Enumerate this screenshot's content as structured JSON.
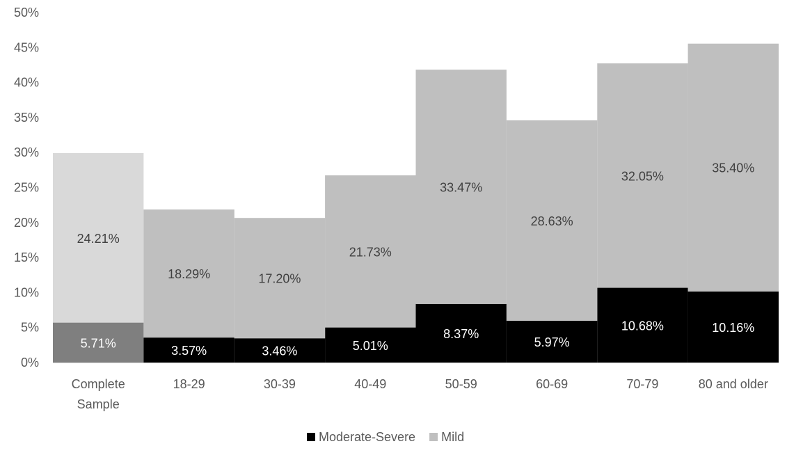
{
  "chart_data": {
    "type": "bar",
    "stacked": true,
    "bar_gap": 0,
    "categories": [
      "Complete\nSample",
      "18-29",
      "30-39",
      "40-49",
      "50-59",
      "60-69",
      "70-79",
      "80 and older"
    ],
    "series": [
      {
        "name": "Moderate-Severe",
        "values": [
          5.71,
          3.57,
          3.46,
          5.01,
          8.37,
          5.97,
          10.68,
          10.16
        ],
        "labels": [
          "5.71%",
          "3.57%",
          "3.46%",
          "5.01%",
          "8.37%",
          "5.97%",
          "10.68%",
          "10.16%"
        ],
        "color": "#000000",
        "first_bar_color": "#7f7f7f",
        "label_color": "#ffffff"
      },
      {
        "name": "Mild",
        "values": [
          24.21,
          18.29,
          17.2,
          21.73,
          33.47,
          28.63,
          32.05,
          35.4
        ],
        "labels": [
          "24.21%",
          "18.29%",
          "17.20%",
          "21.73%",
          "33.47%",
          "28.63%",
          "32.05%",
          "35.40%"
        ],
        "color": "#bfbfbf",
        "first_bar_color": "#d9d9d9",
        "label_color": "#404040"
      }
    ],
    "y_ticks": [
      "0%",
      "5%",
      "10%",
      "15%",
      "20%",
      "25%",
      "30%",
      "35%",
      "40%",
      "45%",
      "50%"
    ],
    "ylim": [
      0,
      50
    ],
    "grid": false,
    "legend_position": "bottom-center",
    "title": "",
    "xlabel": "",
    "ylabel": ""
  },
  "colors": {
    "axis_line": "#d9d9d9",
    "tick_text": "#595959"
  }
}
